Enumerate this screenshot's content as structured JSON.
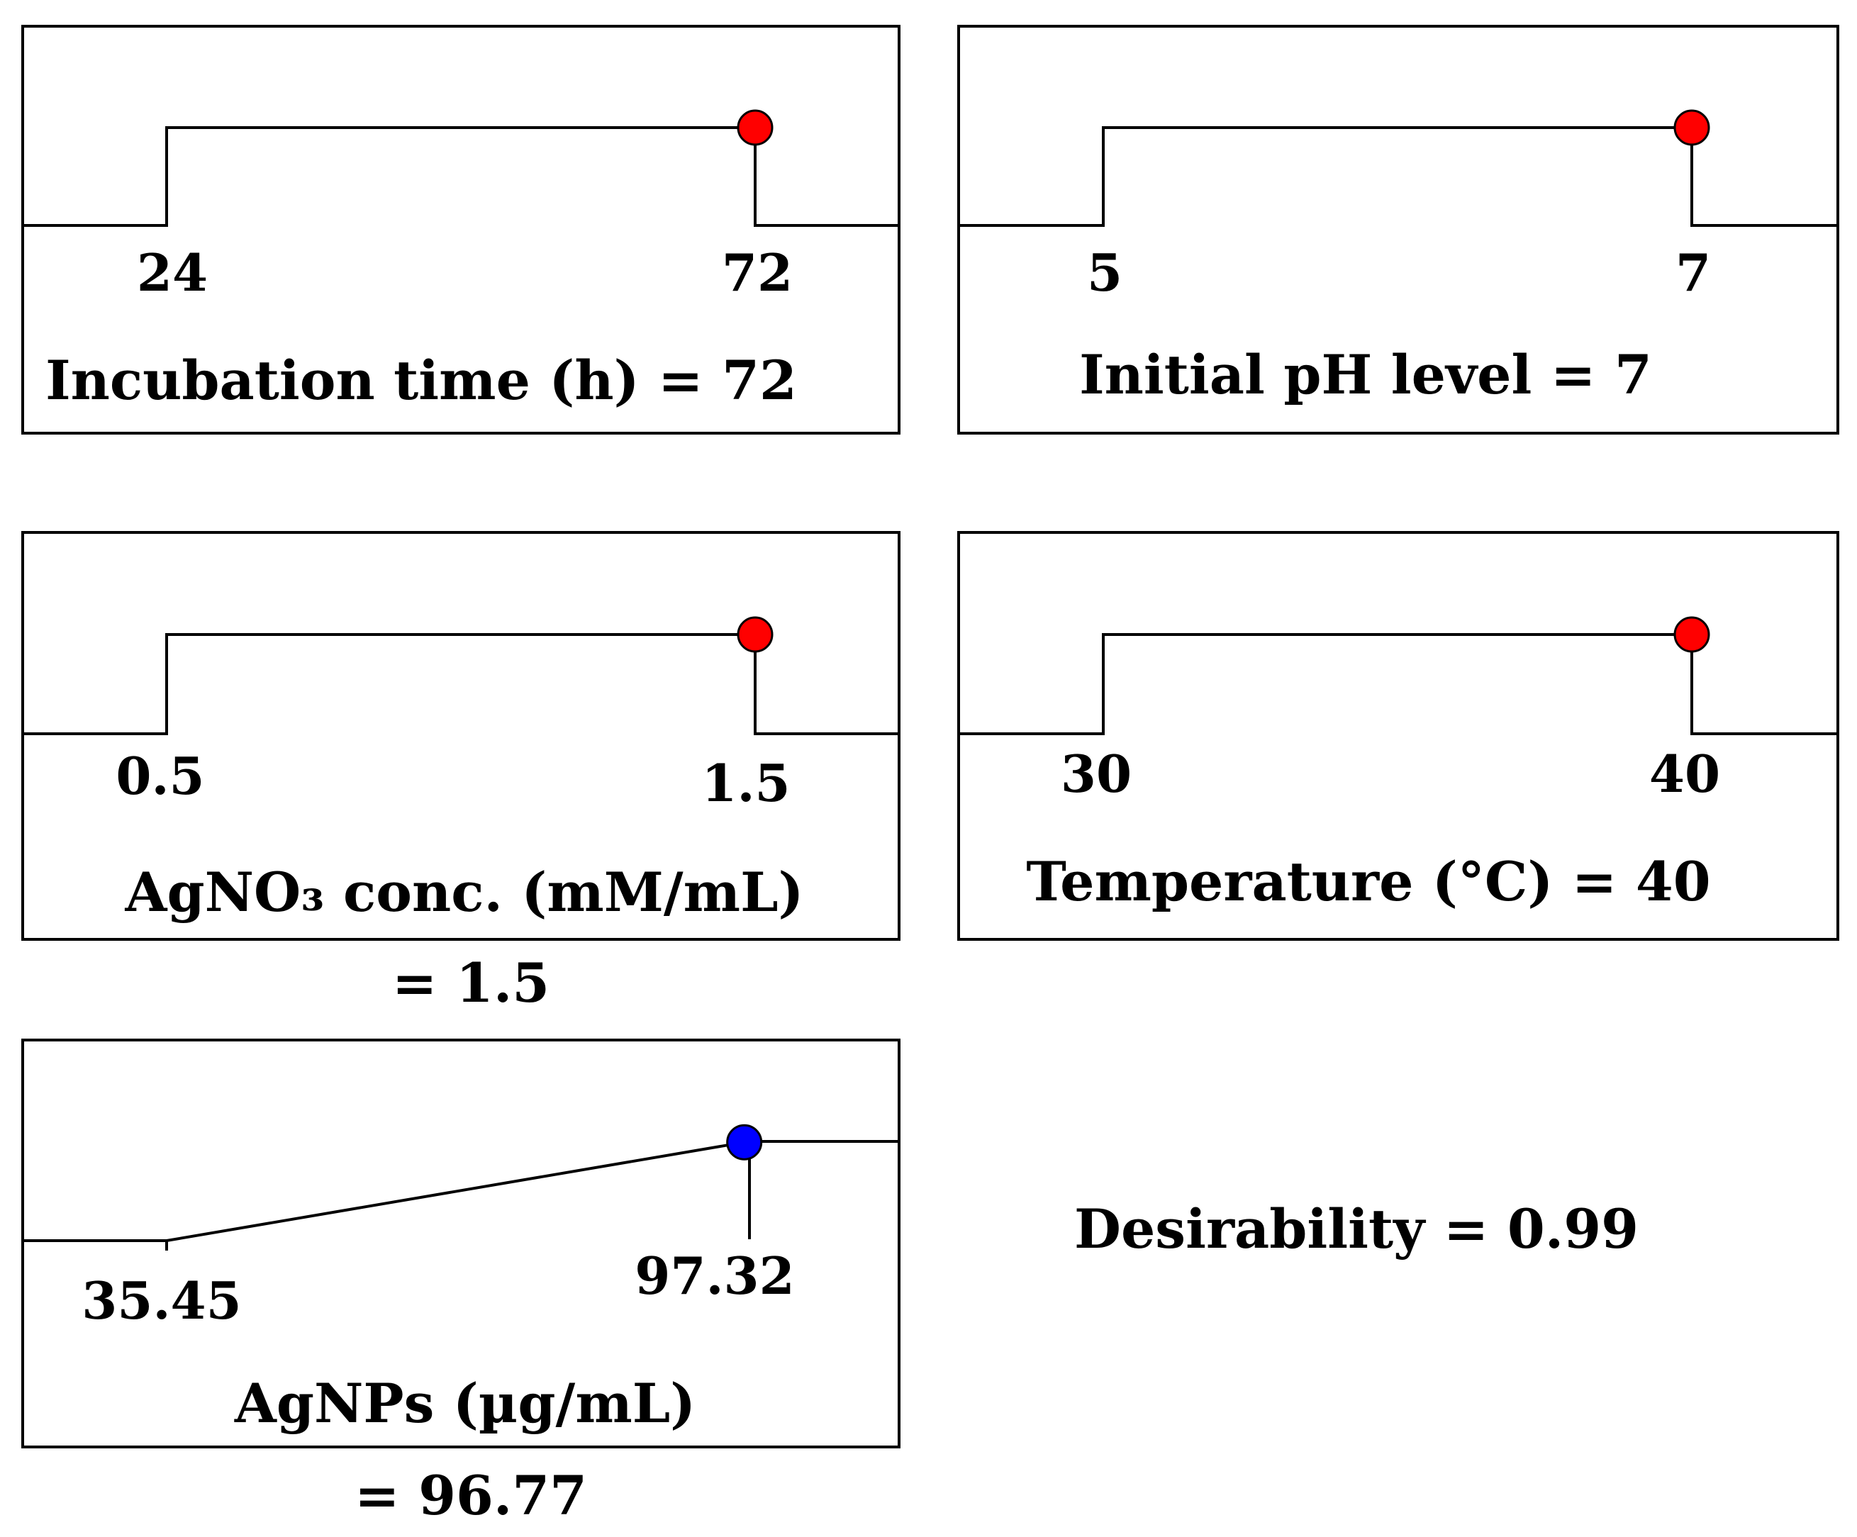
{
  "colors": {
    "factor_marker": "#ff0000",
    "response_marker": "#0000ff",
    "line": "#000000",
    "frame": "#000000",
    "background": "#ffffff"
  },
  "chart_data": [
    {
      "type": "line",
      "role": "factor",
      "title_lines": [
        "Incubation time (h) = 72"
      ],
      "low_label": "24",
      "high_label": "72",
      "low": 24,
      "high": 72,
      "value": 72,
      "shape": "step",
      "marker": "red-dot"
    },
    {
      "type": "line",
      "role": "factor",
      "title_lines": [
        "Initial pH level = 7"
      ],
      "low_label": "5",
      "high_label": "7",
      "low": 5,
      "high": 7,
      "value": 7,
      "shape": "step",
      "marker": "red-dot"
    },
    {
      "type": "line",
      "role": "factor",
      "title_lines": [
        "AgNO₃ conc. (mM/mL)",
        "= 1.5"
      ],
      "low_label": "0.5",
      "high_label": "1.5",
      "low": 0.5,
      "high": 1.5,
      "value": 1.5,
      "shape": "step",
      "marker": "red-dot"
    },
    {
      "type": "line",
      "role": "factor",
      "title_lines": [
        "Temperature (°C) = 40"
      ],
      "low_label": "30",
      "high_label": "40",
      "low": 30,
      "high": 40,
      "value": 40,
      "shape": "step",
      "marker": "red-dot"
    },
    {
      "type": "line",
      "role": "response",
      "title_lines": [
        "AgNPs (µg/mL)",
        "= 96.77"
      ],
      "low_label": "35.45",
      "high_label": "97.32",
      "low": 35.45,
      "high": 97.32,
      "value": 96.77,
      "shape": "ramp",
      "marker": "blue-dot"
    }
  ],
  "desirability": {
    "label": "Desirability = 0.99",
    "value": 0.99
  }
}
